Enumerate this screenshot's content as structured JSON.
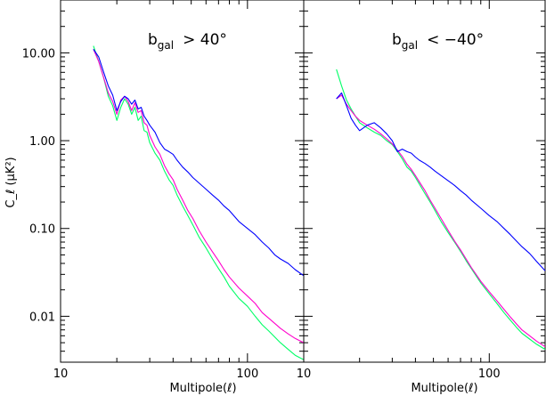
{
  "chart_data": [
    {
      "type": "line",
      "title": "b_gal > 40°",
      "title_main": "b",
      "title_sub": "gal",
      "title_rest": "> 40°",
      "xlabel": "Multipole(ℓ)",
      "ylabel": "C_ℓ (μK²)",
      "xscale": "log",
      "yscale": "log",
      "xlim": [
        10,
        200
      ],
      "ylim": [
        0.003,
        40
      ],
      "xticks": [
        {
          "v": 10,
          "label": "10"
        },
        {
          "v": 100,
          "label": "100"
        }
      ],
      "yticks": [
        {
          "v": 10,
          "label": "10.00"
        },
        {
          "v": 1,
          "label": "1.00"
        },
        {
          "v": 0.1,
          "label": "0.10"
        },
        {
          "v": 0.01,
          "label": "0.01"
        }
      ],
      "series": [
        {
          "color": "#00ff66",
          "x": [
            15,
            16,
            17,
            18,
            19,
            20,
            21,
            22,
            23,
            24,
            25,
            26,
            27,
            28,
            29,
            30,
            32,
            34,
            36,
            38,
            40,
            42,
            45,
            48,
            51,
            55,
            60,
            65,
            70,
            75,
            80,
            90,
            100,
            110,
            120,
            130,
            140,
            150,
            165,
            180,
            200
          ],
          "y": [
            12,
            8.0,
            5.2,
            3.2,
            2.5,
            1.7,
            2.4,
            3.0,
            2.6,
            2.0,
            2.4,
            1.7,
            1.9,
            1.3,
            1.25,
            0.95,
            0.72,
            0.6,
            0.45,
            0.36,
            0.31,
            0.24,
            0.18,
            0.14,
            0.11,
            0.08,
            0.06,
            0.045,
            0.035,
            0.028,
            0.022,
            0.016,
            0.013,
            0.01,
            0.008,
            0.0068,
            0.0058,
            0.005,
            0.0042,
            0.0036,
            0.0032
          ]
        },
        {
          "color": "#ff00cc",
          "x": [
            15,
            16,
            17,
            18,
            19,
            20,
            21,
            22,
            23,
            24,
            25,
            26,
            27,
            28,
            29,
            30,
            32,
            34,
            36,
            38,
            40,
            42,
            45,
            48,
            51,
            55,
            60,
            65,
            70,
            75,
            80,
            90,
            100,
            110,
            120,
            130,
            140,
            150,
            165,
            180,
            200
          ],
          "y": [
            11,
            8.0,
            5.2,
            3.5,
            2.8,
            2.0,
            2.9,
            3.2,
            2.8,
            2.2,
            2.7,
            2.1,
            2.2,
            1.6,
            1.5,
            1.15,
            0.85,
            0.7,
            0.52,
            0.42,
            0.36,
            0.28,
            0.21,
            0.16,
            0.13,
            0.095,
            0.07,
            0.054,
            0.043,
            0.034,
            0.028,
            0.021,
            0.017,
            0.014,
            0.011,
            0.0095,
            0.0083,
            0.0073,
            0.0063,
            0.0056,
            0.005
          ]
        },
        {
          "color": "#0000ff",
          "x": [
            15,
            16,
            17,
            18,
            19,
            20,
            21,
            22,
            23,
            24,
            25,
            26,
            27,
            28,
            29,
            30,
            32,
            34,
            36,
            38,
            40,
            42,
            45,
            48,
            51,
            55,
            60,
            65,
            70,
            75,
            80,
            90,
            100,
            110,
            120,
            130,
            140,
            150,
            165,
            180,
            200
          ],
          "y": [
            11,
            9.0,
            6.0,
            4.2,
            3.3,
            2.2,
            2.8,
            3.2,
            3.0,
            2.6,
            2.9,
            2.3,
            2.4,
            1.9,
            1.7,
            1.5,
            1.25,
            0.95,
            0.8,
            0.75,
            0.7,
            0.6,
            0.5,
            0.44,
            0.38,
            0.33,
            0.28,
            0.24,
            0.21,
            0.18,
            0.16,
            0.12,
            0.1,
            0.085,
            0.07,
            0.06,
            0.05,
            0.045,
            0.04,
            0.034,
            0.029
          ]
        }
      ]
    },
    {
      "type": "line",
      "title": "b_gal < −40°",
      "title_main": "b",
      "title_sub": "gal",
      "title_rest": "< −40°",
      "xlabel": "Multipole(ℓ)",
      "ylabel": "",
      "xscale": "log",
      "yscale": "log",
      "xlim": [
        10,
        200
      ],
      "ylim": [
        0.003,
        40
      ],
      "xticks": [
        {
          "v": 10,
          "label": "10"
        },
        {
          "v": 100,
          "label": "100"
        }
      ],
      "yticks": [],
      "series": [
        {
          "color": "#00ff66",
          "x": [
            15,
            16,
            17,
            18,
            19,
            20,
            22,
            24,
            26,
            28,
            30,
            32,
            34,
            36,
            38,
            40,
            42,
            45,
            48,
            51,
            55,
            60,
            65,
            70,
            75,
            80,
            90,
            100,
            110,
            120,
            130,
            140,
            150,
            165,
            180,
            200
          ],
          "y": [
            6.5,
            4.2,
            2.9,
            2.3,
            1.9,
            1.6,
            1.4,
            1.25,
            1.15,
            1.0,
            0.9,
            0.75,
            0.62,
            0.5,
            0.45,
            0.38,
            0.32,
            0.25,
            0.2,
            0.16,
            0.12,
            0.09,
            0.07,
            0.055,
            0.043,
            0.035,
            0.024,
            0.018,
            0.014,
            0.011,
            0.009,
            0.0075,
            0.0064,
            0.0055,
            0.0048,
            0.0042
          ]
        },
        {
          "color": "#ff00cc",
          "x": [
            15,
            16,
            17,
            18,
            19,
            20,
            22,
            24,
            26,
            28,
            30,
            32,
            34,
            36,
            38,
            40,
            42,
            45,
            48,
            51,
            55,
            60,
            65,
            70,
            75,
            80,
            90,
            100,
            110,
            120,
            130,
            140,
            150,
            165,
            180,
            200
          ],
          "y": [
            3.0,
            3.3,
            2.6,
            2.2,
            1.9,
            1.7,
            1.5,
            1.35,
            1.2,
            1.05,
            0.92,
            0.78,
            0.66,
            0.54,
            0.47,
            0.4,
            0.34,
            0.27,
            0.21,
            0.17,
            0.13,
            0.095,
            0.072,
            0.057,
            0.045,
            0.036,
            0.025,
            0.019,
            0.015,
            0.012,
            0.0098,
            0.0082,
            0.007,
            0.006,
            0.0052,
            0.0045
          ]
        },
        {
          "color": "#0000ff",
          "x": [
            15,
            16,
            17,
            18,
            19,
            20,
            22,
            24,
            26,
            28,
            30,
            32,
            34,
            36,
            38,
            40,
            42,
            45,
            48,
            51,
            55,
            60,
            65,
            70,
            75,
            80,
            90,
            100,
            110,
            120,
            130,
            140,
            150,
            165,
            180,
            200
          ],
          "y": [
            3.0,
            3.5,
            2.5,
            1.8,
            1.5,
            1.3,
            1.5,
            1.6,
            1.4,
            1.2,
            1.0,
            0.75,
            0.8,
            0.75,
            0.72,
            0.65,
            0.6,
            0.55,
            0.5,
            0.45,
            0.4,
            0.35,
            0.31,
            0.27,
            0.24,
            0.21,
            0.17,
            0.14,
            0.12,
            0.1,
            0.085,
            0.072,
            0.062,
            0.052,
            0.042,
            0.033
          ]
        }
      ]
    }
  ]
}
